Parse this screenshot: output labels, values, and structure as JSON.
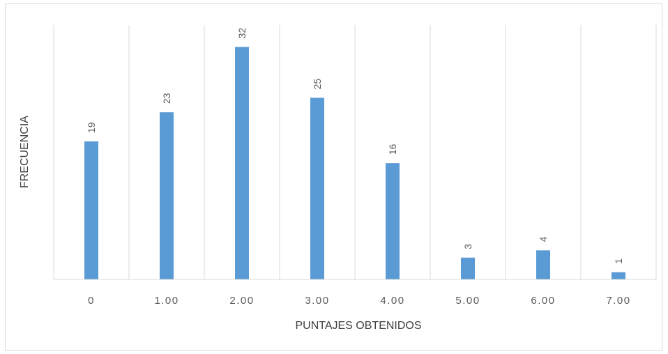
{
  "chart_data": {
    "type": "bar",
    "categories": [
      "0",
      "1.00",
      "2.00",
      "3.00",
      "4.00",
      "5.00",
      "6.00",
      "7.00"
    ],
    "values": [
      19,
      23,
      32,
      25,
      16,
      3,
      4,
      1
    ],
    "data_labels": [
      "19",
      "23",
      "32",
      "25",
      "16",
      "3",
      "4",
      "1"
    ],
    "title": "",
    "xlabel": "PUNTAJES OBTENIDOS",
    "ylabel": "FRECUENCIA",
    "ylim": [
      0,
      35
    ],
    "grid": "vertical",
    "bar_color": "#5b9bd5",
    "grid_color": "#d9d9d9"
  }
}
